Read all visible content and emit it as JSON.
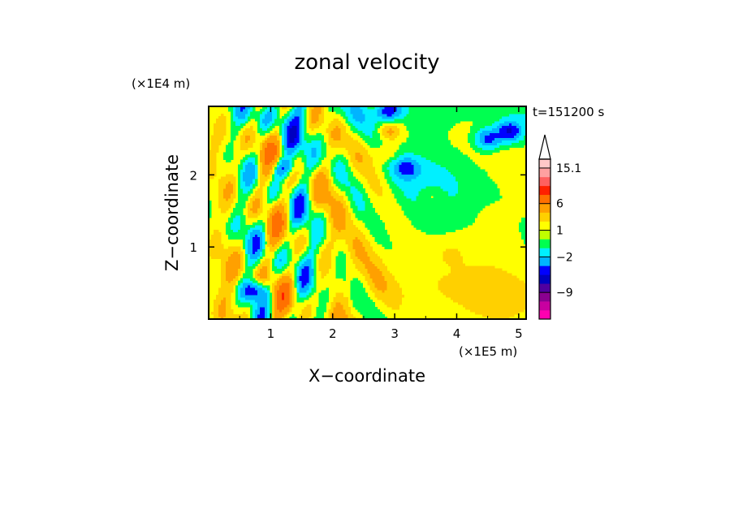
{
  "chart_data": {
    "type": "heatmap",
    "title": "zonal velocity",
    "xlabel": "X−coordinate",
    "ylabel": "Z−coordinate",
    "x_unit": "(×1E5 m)",
    "y_unit": "(×1E4 m)",
    "time_label": "t=151200 s",
    "xlim": [
      0.0,
      5.12
    ],
    "ylim": [
      0.0,
      2.95
    ],
    "x_ticks": [
      1,
      2,
      3,
      4,
      5
    ],
    "y_ticks": [
      1,
      2
    ],
    "colorbar": {
      "labels": [
        "15.1",
        "6",
        "1",
        "−2",
        "−9"
      ],
      "colors": [
        "#ff00b0",
        "#c800a0",
        "#8a0090",
        "#5000a0",
        "#0000c0",
        "#0000ff",
        "#00b4ff",
        "#00f0ff",
        "#00ff50",
        "#c0ff00",
        "#ffff00",
        "#ffd000",
        "#ffa000",
        "#ff7000",
        "#ff2000",
        "#ff6060",
        "#ffa0a0",
        "#ffc8c8",
        "#ffffff"
      ]
    },
    "grid": false,
    "features": [
      {
        "x": 2.85,
        "z": 2.3,
        "v": 2.5
      },
      {
        "x": 2.9,
        "z": 2.6,
        "v": 3.0
      },
      {
        "x": 3.6,
        "z": 1.7,
        "v": 1.5
      },
      {
        "x": 4.6,
        "z": 1.4,
        "v": 1.2
      },
      {
        "x": 3.9,
        "z": 0.9,
        "v": 1.0
      },
      {
        "x": 4.5,
        "z": 2.5,
        "v": -5.0
      },
      {
        "x": 4.85,
        "z": 2.6,
        "v": -6.0
      },
      {
        "x": 3.2,
        "z": 2.1,
        "v": -4.0
      },
      {
        "x": 2.9,
        "z": 2.9,
        "v": -6.0
      },
      {
        "x": 0.75,
        "z": 0.4,
        "v": -6.0
      },
      {
        "x": 1.2,
        "z": 2.1,
        "v": -5.0
      }
    ]
  }
}
